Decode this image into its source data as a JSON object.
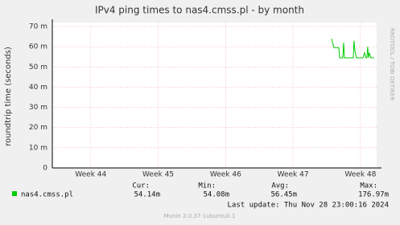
{
  "chart_data": {
    "type": "line",
    "title": "IPv4 ping times to nas4.cmss.pl - by month",
    "y_label": "roundtrip time (seconds)",
    "watermark": "RRDTOOL / TOBI OETIKER",
    "xlim": [
      43.43,
      48.24
    ],
    "xticks": [
      {
        "value": 44,
        "label": "Week 44"
      },
      {
        "value": 45,
        "label": "Week 45"
      },
      {
        "value": 46,
        "label": "Week 46"
      },
      {
        "value": 47,
        "label": "Week 47"
      },
      {
        "value": 48,
        "label": "Week 48"
      }
    ],
    "ylim": [
      0,
      0.072
    ],
    "yticks": [
      {
        "value": 0,
        "label": "0"
      },
      {
        "value": 0.01,
        "label": "10 m"
      },
      {
        "value": 0.02,
        "label": "20 m"
      },
      {
        "value": 0.03,
        "label": "30 m"
      },
      {
        "value": 0.04,
        "label": "40 m"
      },
      {
        "value": 0.05,
        "label": "50 m"
      },
      {
        "value": 0.06,
        "label": "60 m"
      },
      {
        "value": 0.07,
        "label": "70 m"
      }
    ],
    "grid": true,
    "x": [
      47.571,
      47.595,
      47.607,
      47.679,
      47.69,
      47.738,
      47.75,
      47.762,
      47.774,
      47.893,
      47.905,
      47.917,
      47.94,
      47.952,
      48.036,
      48.06,
      48.083,
      48.095,
      48.107,
      48.119,
      48.131,
      48.155,
      48.202
    ],
    "series": [
      {
        "name": "nas4.cmss.pl",
        "color": "#00cc00",
        "values": [
          0.064,
          0.061,
          0.0595,
          0.0595,
          0.0545,
          0.0545,
          0.062,
          0.0545,
          0.0545,
          0.0545,
          0.063,
          0.058,
          0.0545,
          0.0545,
          0.0545,
          0.057,
          0.0545,
          0.0545,
          0.06,
          0.0545,
          0.057,
          0.0545,
          0.0545
        ]
      }
    ],
    "stats": {
      "labels": [
        "Cur:",
        "Min:",
        "Avg:",
        "Max:"
      ],
      "values": [
        0.05414,
        0.05408,
        0.05645,
        0.17697
      ],
      "value_labels": [
        "54.14m",
        "54.08m",
        "56.45m",
        "176.97m"
      ]
    },
    "last_update": "Last update: Thu Nov 28 23:00:16 2024",
    "footer": "Munin 2.0.37-1ubuntu0.1"
  }
}
